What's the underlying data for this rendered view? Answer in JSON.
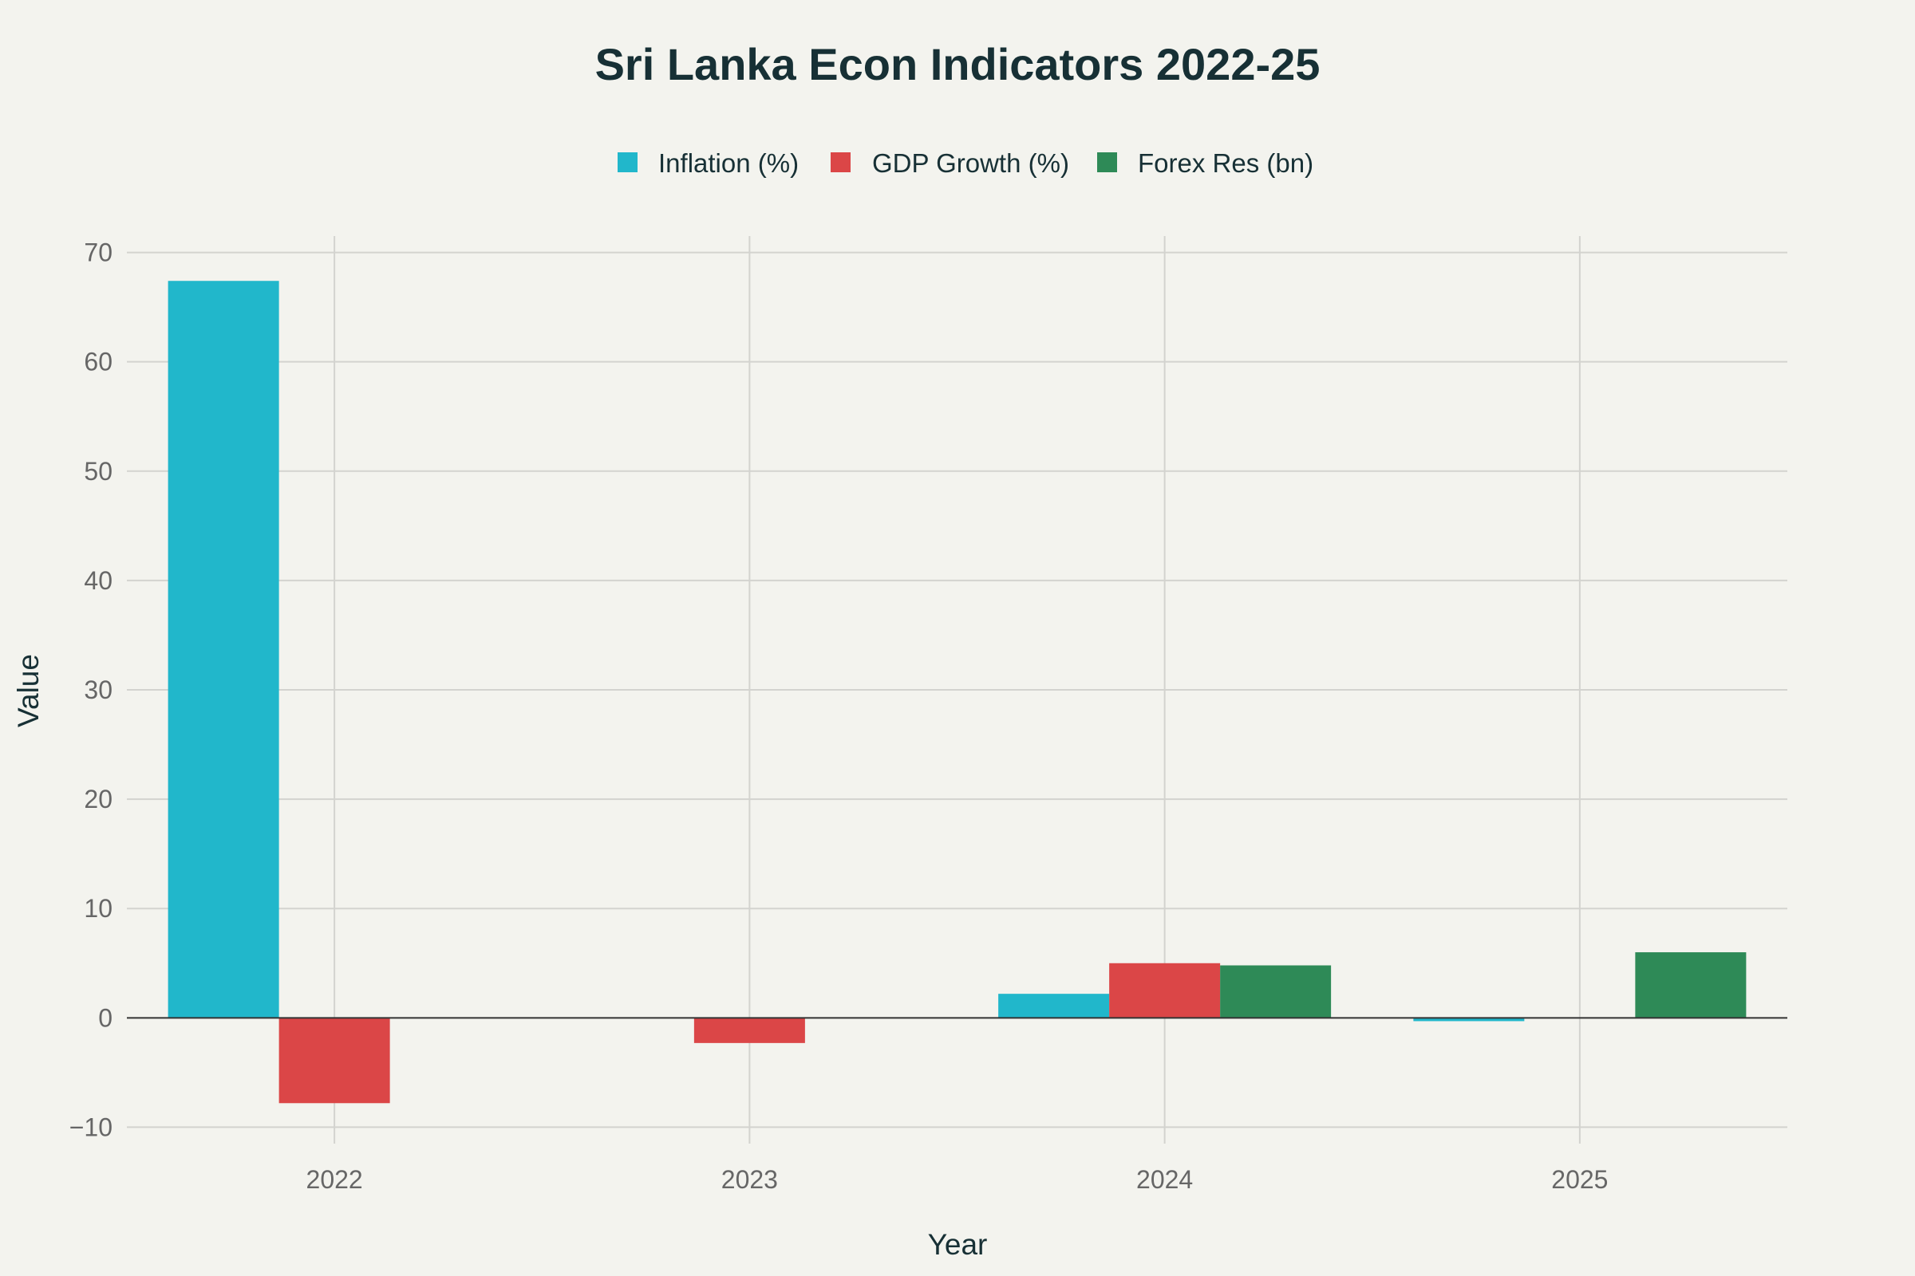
{
  "chart_data": {
    "type": "bar",
    "title": "Sri Lanka Econ Indicators 2022-25",
    "xlabel": "Year",
    "ylabel": "Value",
    "categories": [
      "2022",
      "2023",
      "2024",
      "2025"
    ],
    "ylim": [
      -11.5,
      71.5
    ],
    "yticks": [
      -10,
      0,
      10,
      20,
      30,
      40,
      50,
      60,
      70
    ],
    "ytick_labels": [
      "−10",
      "0",
      "10",
      "20",
      "30",
      "40",
      "50",
      "60",
      "70"
    ],
    "grid": true,
    "legend_position": "top-center",
    "series": [
      {
        "name": "Inflation (%)",
        "color": "#21b7cb",
        "values": [
          67.4,
          0,
          2.2,
          -0.3
        ]
      },
      {
        "name": "GDP Growth (%)",
        "color": "#db4647",
        "values": [
          -7.8,
          -2.3,
          5.0,
          0
        ]
      },
      {
        "name": "Forex Res (bn)",
        "color": "#2e8a57",
        "values": [
          0,
          0,
          4.8,
          6.0
        ]
      }
    ]
  }
}
